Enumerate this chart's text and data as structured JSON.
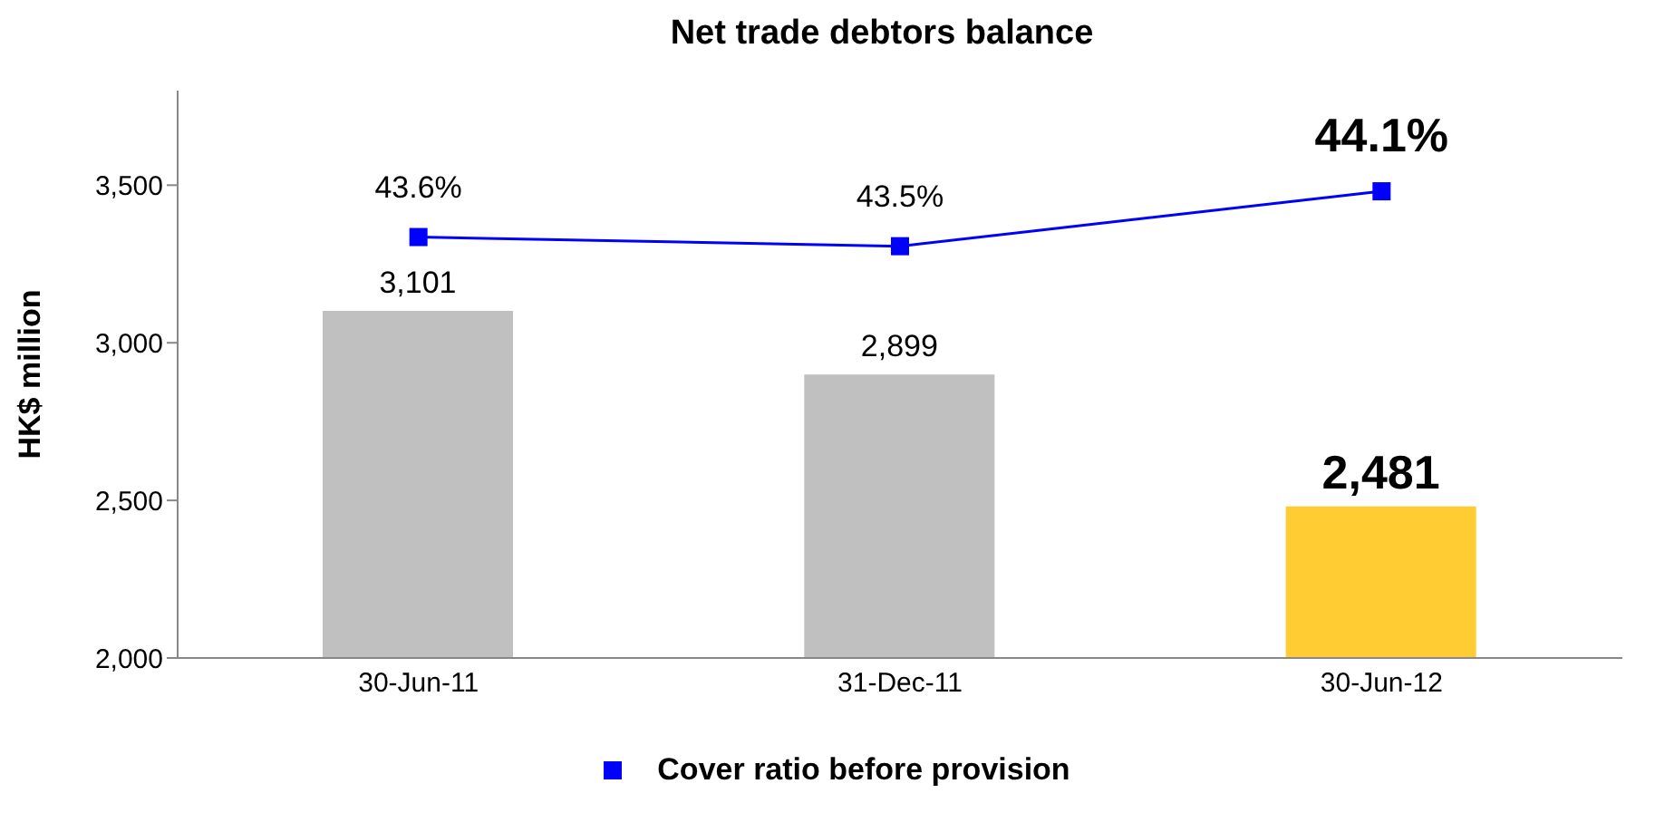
{
  "chart_data": {
    "type": "bar",
    "title": "Net trade debtors balance",
    "ylabel": "HK$ million",
    "categories": [
      "30-Jun-11",
      "31-Dec-11",
      "30-Jun-12"
    ],
    "series": [
      {
        "colors": [
          "#c0c0c0",
          "#c0c0c0",
          "#ffcc33"
        ],
        "values": [
          3101,
          2899,
          2481
        ],
        "value_labels": [
          "3,101",
          "2,899",
          "2,481"
        ]
      },
      {
        "type": "line",
        "name": "Cover ratio before provision",
        "color": "#0000ff",
        "axis": "y2",
        "marker": "square",
        "values": [
          43.6,
          43.5,
          44.1
        ],
        "value_labels": [
          "43.6%",
          "43.5%",
          "44.1%"
        ]
      }
    ],
    "ylim": [
      2000,
      3800
    ],
    "yticks": [
      {
        "value": 2000,
        "label": "2,000"
      },
      {
        "value": 2500,
        "label": "2,500"
      },
      {
        "value": 3000,
        "label": "3,000"
      },
      {
        "value": 3500,
        "label": "3,500"
      }
    ],
    "y2lim": [
      39,
      45.2
    ],
    "legend": "bottom"
  }
}
